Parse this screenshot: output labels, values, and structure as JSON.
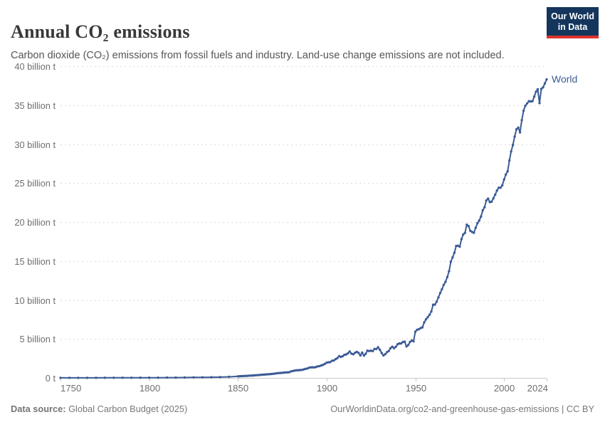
{
  "header": {
    "title": "Annual CO₂ emissions",
    "subtitle": "Carbon dioxide (CO₂) emissions from fossil fuels and industry. Land-use change emissions are not included."
  },
  "logo": {
    "line1": "Our World",
    "line2": "in Data",
    "bg_color": "#14355c",
    "bar_color": "#dd342c"
  },
  "footer": {
    "source_label": "Data source:",
    "source_rest": " Global Carbon Budget (2025)",
    "link": "OurWorldinData.org/co2-and-greenhouse-gas-emissions",
    "separator": " | ",
    "license": "CC BY"
  },
  "chart_data": {
    "type": "line",
    "title": "Annual CO₂ emissions",
    "xlabel": "",
    "ylabel": "",
    "unit": "billion t",
    "xlim": [
      1750,
      2024
    ],
    "ylim": [
      0,
      40
    ],
    "grid": "horizontal-dashed",
    "legend_position": "line-end-label",
    "grid_color": "#dcdcdc",
    "axis_color": "#c8c8c8",
    "tick_color": "#6e6e6e",
    "x_ticks": [
      1750,
      1800,
      1850,
      1900,
      1950,
      2000,
      2024
    ],
    "y_ticks": [
      {
        "v": 0,
        "label": "0 t"
      },
      {
        "v": 5,
        "label": "5 billion t"
      },
      {
        "v": 10,
        "label": "10 billion t"
      },
      {
        "v": 15,
        "label": "15 billion t"
      },
      {
        "v": 20,
        "label": "20 billion t"
      },
      {
        "v": 25,
        "label": "25 billion t"
      },
      {
        "v": 30,
        "label": "30 billion t"
      },
      {
        "v": 35,
        "label": "35 billion t"
      },
      {
        "v": 40,
        "label": "40 billion t"
      }
    ],
    "series": [
      {
        "name": "World",
        "color": "#3c5b96",
        "points": [
          [
            1750,
            0.01
          ],
          [
            1755,
            0.01
          ],
          [
            1760,
            0.01
          ],
          [
            1765,
            0.01
          ],
          [
            1770,
            0.01
          ],
          [
            1775,
            0.02
          ],
          [
            1780,
            0.02
          ],
          [
            1785,
            0.02
          ],
          [
            1790,
            0.02
          ],
          [
            1795,
            0.03
          ],
          [
            1800,
            0.03
          ],
          [
            1805,
            0.03
          ],
          [
            1810,
            0.04
          ],
          [
            1815,
            0.04
          ],
          [
            1820,
            0.05
          ],
          [
            1825,
            0.06
          ],
          [
            1830,
            0.07
          ],
          [
            1835,
            0.08
          ],
          [
            1840,
            0.1
          ],
          [
            1845,
            0.14
          ],
          [
            1850,
            0.2
          ],
          [
            1851,
            0.21
          ],
          [
            1852,
            0.23
          ],
          [
            1853,
            0.24
          ],
          [
            1854,
            0.26
          ],
          [
            1855,
            0.26
          ],
          [
            1856,
            0.28
          ],
          [
            1857,
            0.29
          ],
          [
            1858,
            0.3
          ],
          [
            1859,
            0.32
          ],
          [
            1860,
            0.34
          ],
          [
            1861,
            0.36
          ],
          [
            1862,
            0.37
          ],
          [
            1863,
            0.39
          ],
          [
            1864,
            0.41
          ],
          [
            1865,
            0.43
          ],
          [
            1866,
            0.45
          ],
          [
            1867,
            0.47
          ],
          [
            1868,
            0.48
          ],
          [
            1869,
            0.5
          ],
          [
            1870,
            0.53
          ],
          [
            1871,
            0.56
          ],
          [
            1872,
            0.6
          ],
          [
            1873,
            0.62
          ],
          [
            1874,
            0.63
          ],
          [
            1875,
            0.66
          ],
          [
            1876,
            0.68
          ],
          [
            1877,
            0.7
          ],
          [
            1878,
            0.71
          ],
          [
            1879,
            0.74
          ],
          [
            1880,
            0.84
          ],
          [
            1881,
            0.89
          ],
          [
            1882,
            0.94
          ],
          [
            1883,
            0.98
          ],
          [
            1884,
            0.99
          ],
          [
            1885,
            1.0
          ],
          [
            1886,
            1.02
          ],
          [
            1887,
            1.08
          ],
          [
            1888,
            1.16
          ],
          [
            1889,
            1.2
          ],
          [
            1890,
            1.3
          ],
          [
            1891,
            1.35
          ],
          [
            1892,
            1.36
          ],
          [
            1893,
            1.34
          ],
          [
            1894,
            1.4
          ],
          [
            1895,
            1.48
          ],
          [
            1896,
            1.52
          ],
          [
            1897,
            1.6
          ],
          [
            1898,
            1.68
          ],
          [
            1899,
            1.8
          ],
          [
            1900,
            1.95
          ],
          [
            1901,
            2.0
          ],
          [
            1902,
            2.03
          ],
          [
            1903,
            2.2
          ],
          [
            1904,
            2.23
          ],
          [
            1905,
            2.4
          ],
          [
            1906,
            2.54
          ],
          [
            1907,
            2.79
          ],
          [
            1908,
            2.69
          ],
          [
            1909,
            2.78
          ],
          [
            1910,
            2.96
          ],
          [
            1911,
            3.0
          ],
          [
            1912,
            3.15
          ],
          [
            1913,
            3.39
          ],
          [
            1914,
            3.11
          ],
          [
            1915,
            3.03
          ],
          [
            1916,
            3.22
          ],
          [
            1917,
            3.34
          ],
          [
            1918,
            3.21
          ],
          [
            1919,
            2.89
          ],
          [
            1920,
            3.24
          ],
          [
            1921,
            2.87
          ],
          [
            1922,
            3.09
          ],
          [
            1923,
            3.5
          ],
          [
            1924,
            3.44
          ],
          [
            1925,
            3.5
          ],
          [
            1926,
            3.43
          ],
          [
            1927,
            3.72
          ],
          [
            1928,
            3.71
          ],
          [
            1929,
            3.93
          ],
          [
            1930,
            3.61
          ],
          [
            1931,
            3.21
          ],
          [
            1932,
            2.89
          ],
          [
            1933,
            3.04
          ],
          [
            1934,
            3.31
          ],
          [
            1935,
            3.44
          ],
          [
            1936,
            3.81
          ],
          [
            1937,
            4.0
          ],
          [
            1938,
            3.81
          ],
          [
            1939,
            3.99
          ],
          [
            1940,
            4.32
          ],
          [
            1941,
            4.42
          ],
          [
            1942,
            4.42
          ],
          [
            1943,
            4.6
          ],
          [
            1944,
            4.65
          ],
          [
            1945,
            4.04
          ],
          [
            1946,
            4.22
          ],
          [
            1947,
            4.61
          ],
          [
            1948,
            4.8
          ],
          [
            1949,
            4.69
          ],
          [
            1950,
            5.93
          ],
          [
            1951,
            6.17
          ],
          [
            1952,
            6.25
          ],
          [
            1953,
            6.39
          ],
          [
            1954,
            6.48
          ],
          [
            1955,
            7.12
          ],
          [
            1956,
            7.52
          ],
          [
            1957,
            7.79
          ],
          [
            1958,
            8.1
          ],
          [
            1959,
            8.52
          ],
          [
            1960,
            9.39
          ],
          [
            1961,
            9.41
          ],
          [
            1962,
            9.78
          ],
          [
            1963,
            10.32
          ],
          [
            1964,
            10.89
          ],
          [
            1965,
            11.38
          ],
          [
            1966,
            11.94
          ],
          [
            1967,
            12.32
          ],
          [
            1968,
            12.93
          ],
          [
            1969,
            13.69
          ],
          [
            1970,
            14.9
          ],
          [
            1971,
            15.46
          ],
          [
            1972,
            16.06
          ],
          [
            1973,
            16.93
          ],
          [
            1974,
            16.96
          ],
          [
            1975,
            16.84
          ],
          [
            1976,
            17.81
          ],
          [
            1977,
            18.4
          ],
          [
            1978,
            18.61
          ],
          [
            1979,
            19.66
          ],
          [
            1980,
            19.48
          ],
          [
            1981,
            18.88
          ],
          [
            1982,
            18.72
          ],
          [
            1983,
            18.62
          ],
          [
            1984,
            19.26
          ],
          [
            1985,
            19.85
          ],
          [
            1986,
            20.19
          ],
          [
            1987,
            20.71
          ],
          [
            1988,
            21.51
          ],
          [
            1989,
            21.9
          ],
          [
            1990,
            22.76
          ],
          [
            1991,
            23.0
          ],
          [
            1992,
            22.56
          ],
          [
            1993,
            22.61
          ],
          [
            1994,
            23.04
          ],
          [
            1995,
            23.51
          ],
          [
            1996,
            24.05
          ],
          [
            1997,
            24.4
          ],
          [
            1998,
            24.41
          ],
          [
            1999,
            24.71
          ],
          [
            2000,
            25.45
          ],
          [
            2001,
            26.1
          ],
          [
            2002,
            26.51
          ],
          [
            2003,
            27.9
          ],
          [
            2004,
            29.05
          ],
          [
            2005,
            29.89
          ],
          [
            2006,
            30.96
          ],
          [
            2007,
            31.9
          ],
          [
            2008,
            32.12
          ],
          [
            2009,
            31.51
          ],
          [
            2010,
            33.08
          ],
          [
            2011,
            34.28
          ],
          [
            2012,
            34.92
          ],
          [
            2013,
            35.22
          ],
          [
            2014,
            35.51
          ],
          [
            2015,
            35.47
          ],
          [
            2016,
            35.52
          ],
          [
            2017,
            36.1
          ],
          [
            2018,
            36.72
          ],
          [
            2019,
            37.04
          ],
          [
            2020,
            35.26
          ],
          [
            2021,
            37.08
          ],
          [
            2022,
            37.29
          ],
          [
            2023,
            37.79
          ],
          [
            2024,
            38.3
          ]
        ]
      }
    ]
  }
}
